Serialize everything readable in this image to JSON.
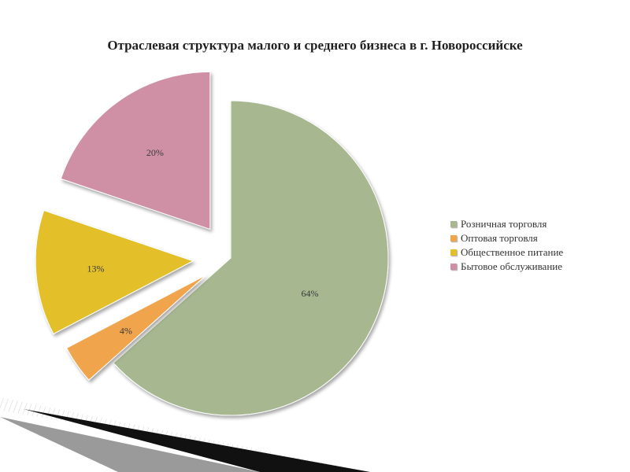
{
  "slide": {
    "title": "Отраслевая структура малого и среднего бизнеса в г. Новороссийске"
  },
  "chart_data": {
    "type": "pie",
    "exploded": true,
    "categories": [
      "Розничная торговля",
      "Оптовая торговля",
      "Общественное питание",
      "Бытовое обслуживание"
    ],
    "values": [
      64,
      4,
      13,
      20
    ],
    "data_labels": [
      "64%",
      "4%",
      "13%",
      "20%"
    ],
    "colors": [
      "#a7b891",
      "#f0a44c",
      "#e3bf2c",
      "#cf90a6"
    ],
    "legend_position": "right"
  }
}
